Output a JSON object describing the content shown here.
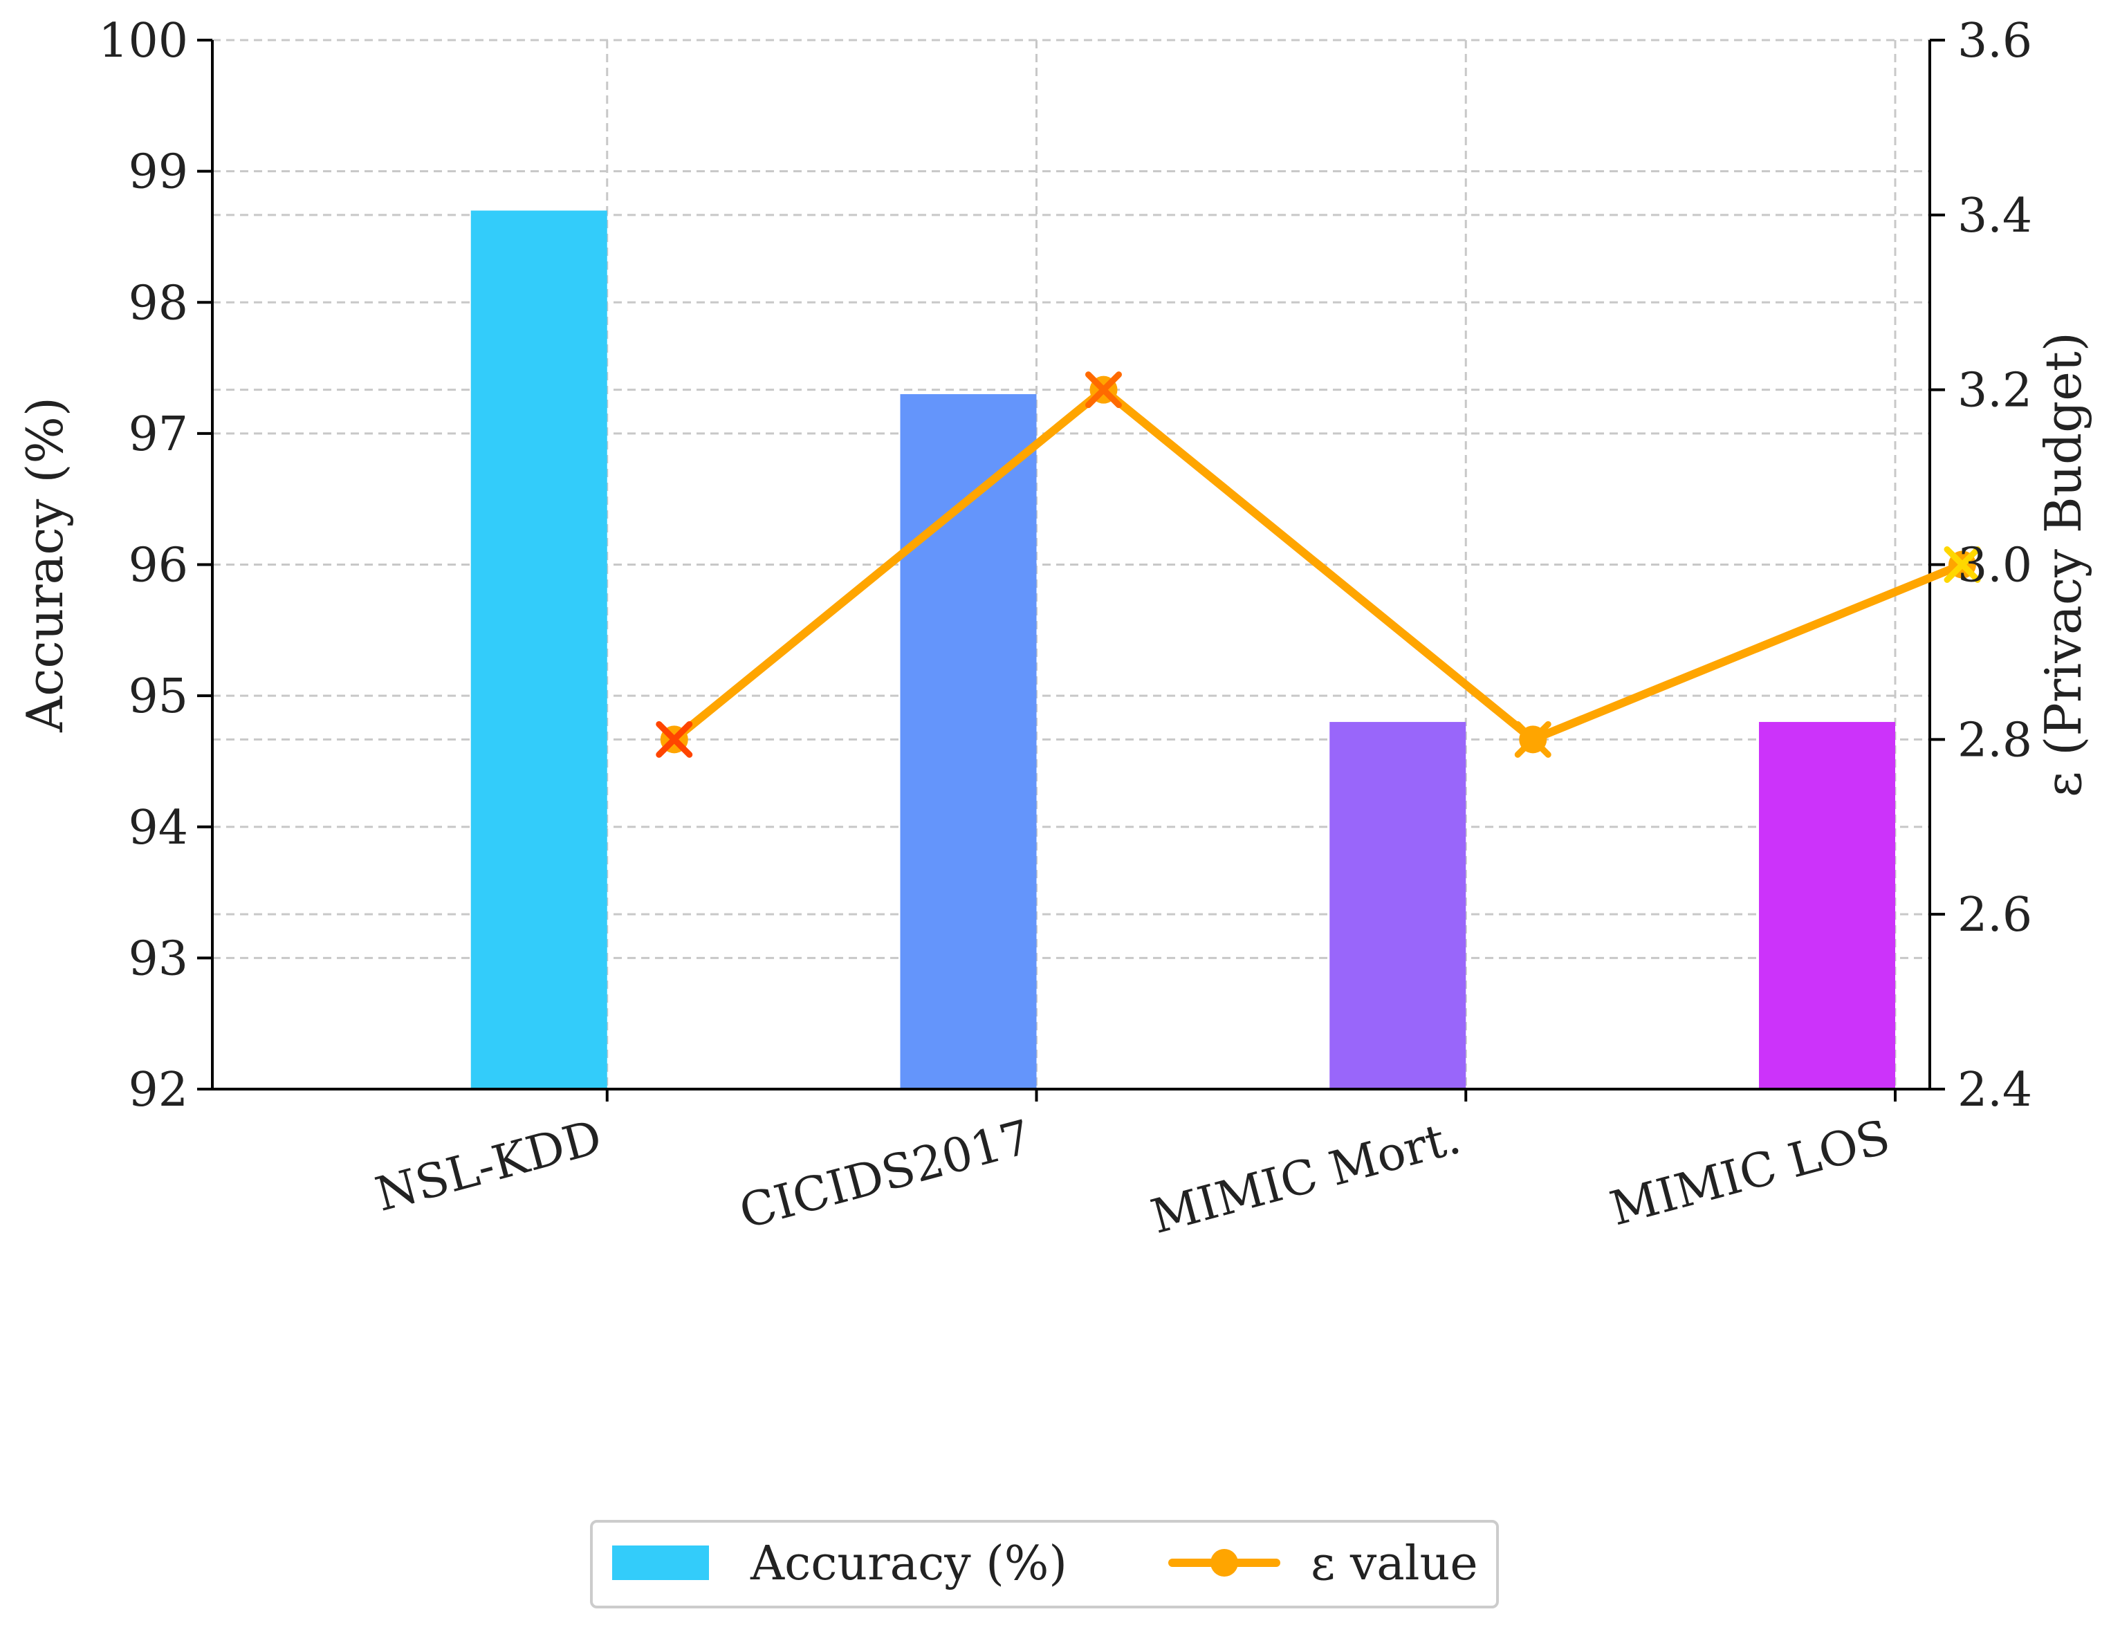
{
  "chart_data": {
    "type": "bar",
    "categories": [
      "NSL-KDD",
      "CICIDS2017",
      "MIMIC Mort.",
      "MIMIC LOS"
    ],
    "series": [
      {
        "name": "Accuracy (%)",
        "type": "bar",
        "axis": "left",
        "values": [
          98.7,
          97.3,
          94.8,
          94.8
        ],
        "colors": [
          "#33ccfa",
          "#6495fb",
          "#9966fa",
          "#cc33fa"
        ]
      },
      {
        "name": "ε value",
        "type": "line",
        "axis": "right",
        "values": [
          2.8,
          3.2,
          2.8,
          3.0
        ],
        "color": "#ffa500",
        "marker_colors": [
          "#ff4500",
          "#ff6a00",
          "#ffa500",
          "#ffd700"
        ]
      }
    ],
    "ylabel": "Accuracy (%)",
    "ylabel_right": "ε (Privacy Budget)",
    "ylim": [
      92,
      100
    ],
    "ylim_right": [
      2.4,
      3.6
    ],
    "yticks": [
      "92",
      "93",
      "94",
      "95",
      "96",
      "97",
      "98",
      "99",
      "100"
    ],
    "yticks_right": [
      "2.4",
      "2.6",
      "2.8",
      "3.0",
      "3.2",
      "3.4",
      "3.6"
    ],
    "grid": true,
    "legend_position": "bottom-center"
  }
}
